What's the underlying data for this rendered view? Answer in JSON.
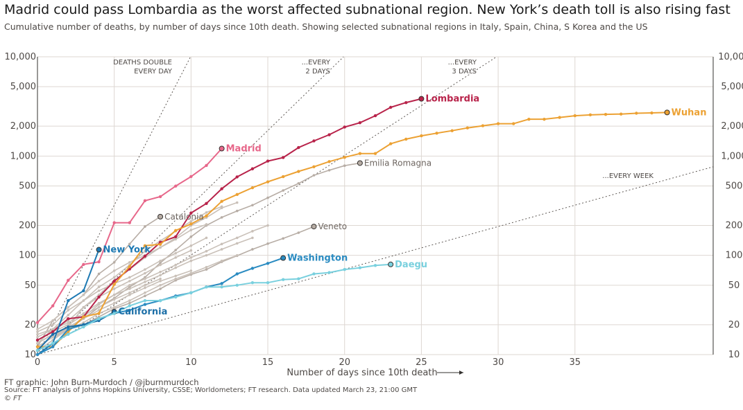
{
  "header": {
    "title": "Madrid could pass Lombardia as the worst affected subnational region. New York’s death toll is also rising fast",
    "subtitle": "Cumulative number of deaths, by number of days since 10th death. Showing selected subnational regions in Italy, Spain, China, S Korea and the US"
  },
  "footer": {
    "credit": "FT graphic: John Burn-Murdoch / @jburnmurdoch",
    "source": "Source: FT analysis of Johns Hopkins University, CSSE; Worldometers; FT research. Data updated March 23, 21:00 GMT",
    "copyright": "© FT"
  },
  "chart_data": {
    "type": "line",
    "title": "Madrid could pass Lombardia as the worst affected subnational region. New York’s death toll is also rising fast",
    "subtitle": "Cumulative number of deaths, by number of days since 10th death. Showing selected subnational regions in Italy, Spain, China, S Korea and the US",
    "xlabel": "Number of days since 10th death",
    "ylabel": "",
    "xlim": [
      0,
      44
    ],
    "ylim": [
      10,
      10000
    ],
    "yscale": "log",
    "x_ticks": [
      0,
      5,
      10,
      15,
      20,
      25,
      30,
      35
    ],
    "x_tick_labels": [
      "0",
      "5",
      "10",
      "15",
      "20",
      "25",
      "30",
      "35"
    ],
    "y_ticks": [
      10,
      20,
      50,
      100,
      200,
      500,
      1000,
      2000,
      5000,
      10000
    ],
    "y_tick_labels": [
      "10",
      "20",
      "50",
      "100",
      "200",
      "500",
      "1,000",
      "2,000",
      "5,000",
      "10,000"
    ],
    "grid": true,
    "guides": [
      {
        "label_lines": [
          "DEATHS DOUBLE",
          "EVERY DAY"
        ],
        "doubling_days": 1
      },
      {
        "label_lines": [
          "...EVERY",
          "2 DAYS"
        ],
        "doubling_days": 2
      },
      {
        "label_lines": [
          "...EVERY",
          "3 DAYS"
        ],
        "doubling_days": 3
      },
      {
        "label_lines": [
          "...EVERY WEEK"
        ],
        "doubling_days": 7
      }
    ],
    "series": [
      {
        "name": "Madrid",
        "color": "#e7678a",
        "highlight": true,
        "label_pos": "right",
        "values": [
          21,
          31,
          56,
          81,
          86,
          213,
          213,
          355,
          390,
          498,
          621,
          804,
          1190
        ]
      },
      {
        "name": "Lombardia",
        "color": "#b8234a",
        "highlight": true,
        "label_pos": "right",
        "values": [
          14,
          17,
          23,
          24,
          38,
          55,
          73,
          98,
          135,
          154,
          267,
          333,
          468,
          617,
          744,
          890,
          966,
          1218,
          1420,
          1640,
          1959,
          2168,
          2549,
          3095,
          3456,
          3776
        ]
      },
      {
        "name": "Wuhan",
        "color": "#eca133",
        "highlight": true,
        "label_pos": "right",
        "values": [
          12,
          12,
          17,
          24,
          26,
          51,
          77,
          125,
          129,
          178,
          207,
          250,
          350,
          410,
          480,
          550,
          620,
          700,
          780,
          880,
          970,
          1060,
          1060,
          1330,
          1480,
          1600,
          1700,
          1800,
          1920,
          2020,
          2120,
          2120,
          2350,
          2350,
          2450,
          2550,
          2600,
          2630,
          2650,
          2700,
          2720,
          2750
        ]
      },
      {
        "name": "New York",
        "color": "#1d79b3",
        "highlight": true,
        "label_pos": "right",
        "values": [
          10,
          13,
          35,
          44,
          114
        ]
      },
      {
        "name": "Washington",
        "color": "#2a8bc1",
        "highlight": true,
        "label_pos": "right",
        "values": [
          10,
          12,
          18,
          20,
          23,
          26,
          28,
          32,
          35,
          39,
          42,
          48,
          52,
          65,
          74,
          83,
          94
        ]
      },
      {
        "name": "California",
        "color": "#1c6fa7",
        "highlight": true,
        "label_pos": "right",
        "values": [
          11,
          16,
          19,
          20,
          22,
          27
        ]
      },
      {
        "name": "Daegu",
        "color": "#79d0de",
        "highlight": true,
        "label_pos": "right",
        "values": [
          11,
          13,
          16,
          19,
          23,
          26,
          31,
          35,
          35,
          38,
          42,
          48,
          48,
          50,
          53,
          53,
          57,
          58,
          65,
          67,
          72,
          75,
          79,
          81
        ]
      },
      {
        "name": "Catalonia",
        "color": "#b7ada5",
        "highlight": false,
        "label_pos": "right",
        "values": [
          12,
          22,
          30,
          40,
          65,
          85,
          130,
          195,
          245
        ]
      },
      {
        "name": "Emilia Romagna",
        "color": "#b7ada5",
        "highlight": false,
        "label_pos": "right",
        "values": [
          13,
          16,
          18,
          23,
          30,
          37,
          48,
          60,
          84,
          113,
          154,
          200,
          241,
          280,
          320,
          380,
          450,
          530,
          640,
          720,
          800,
          850
        ]
      },
      {
        "name": "Veneto",
        "color": "#b7ada5",
        "highlight": false,
        "label_pos": "right",
        "values": [
          12,
          15,
          18,
          20,
          24,
          29,
          33,
          39,
          46,
          56,
          64,
          72,
          86,
          99,
          115,
          131,
          148,
          169,
          195
        ]
      },
      {
        "name": "",
        "color": "#c9c0b8",
        "highlight": false,
        "values": [
          16,
          18,
          22,
          30,
          40,
          55,
          72,
          95,
          120,
          150,
          200,
          240,
          300,
          340
        ]
      },
      {
        "name": "",
        "color": "#c9c0b8",
        "highlight": false,
        "values": [
          13,
          18,
          25,
          35,
          48,
          60,
          80,
          110,
          140,
          175,
          220,
          270,
          310
        ]
      },
      {
        "name": "",
        "color": "#c9c0b8",
        "highlight": false,
        "values": [
          18,
          22,
          30,
          40,
          55,
          70,
          85,
          100,
          120,
          145,
          180,
          205
        ]
      },
      {
        "name": "",
        "color": "#c9c0b8",
        "highlight": false,
        "values": [
          11,
          14,
          18,
          24,
          32,
          40,
          50,
          58,
          68,
          80,
          95,
          110,
          130,
          150,
          175,
          200
        ]
      },
      {
        "name": "",
        "color": "#c9c0b8",
        "highlight": false,
        "values": [
          17,
          20,
          28,
          35,
          44,
          52,
          60,
          72,
          88,
          105,
          125,
          150
        ]
      },
      {
        "name": "",
        "color": "#c9c0b8",
        "highlight": false,
        "values": [
          12,
          15,
          19,
          23,
          28,
          33,
          40,
          47,
          55,
          62,
          70
        ]
      },
      {
        "name": "",
        "color": "#c9c0b8",
        "highlight": false,
        "values": [
          14,
          17,
          20,
          25,
          30,
          36,
          42,
          50,
          58
        ]
      },
      {
        "name": "",
        "color": "#c9c0b8",
        "highlight": false,
        "values": [
          15,
          18,
          21,
          26,
          33,
          40,
          46,
          54,
          63,
          75,
          88,
          100,
          115,
          132,
          150
        ]
      },
      {
        "name": "",
        "color": "#c9c0b8",
        "highlight": false,
        "values": [
          13,
          16,
          18,
          21,
          26,
          30,
          35,
          42,
          50,
          58,
          66,
          76,
          88,
          100
        ]
      },
      {
        "name": "",
        "color": "#c9c0b8",
        "highlight": false,
        "values": [
          11,
          14,
          19,
          30,
          38,
          46,
          55,
          66,
          80,
          95,
          112
        ]
      }
    ]
  }
}
